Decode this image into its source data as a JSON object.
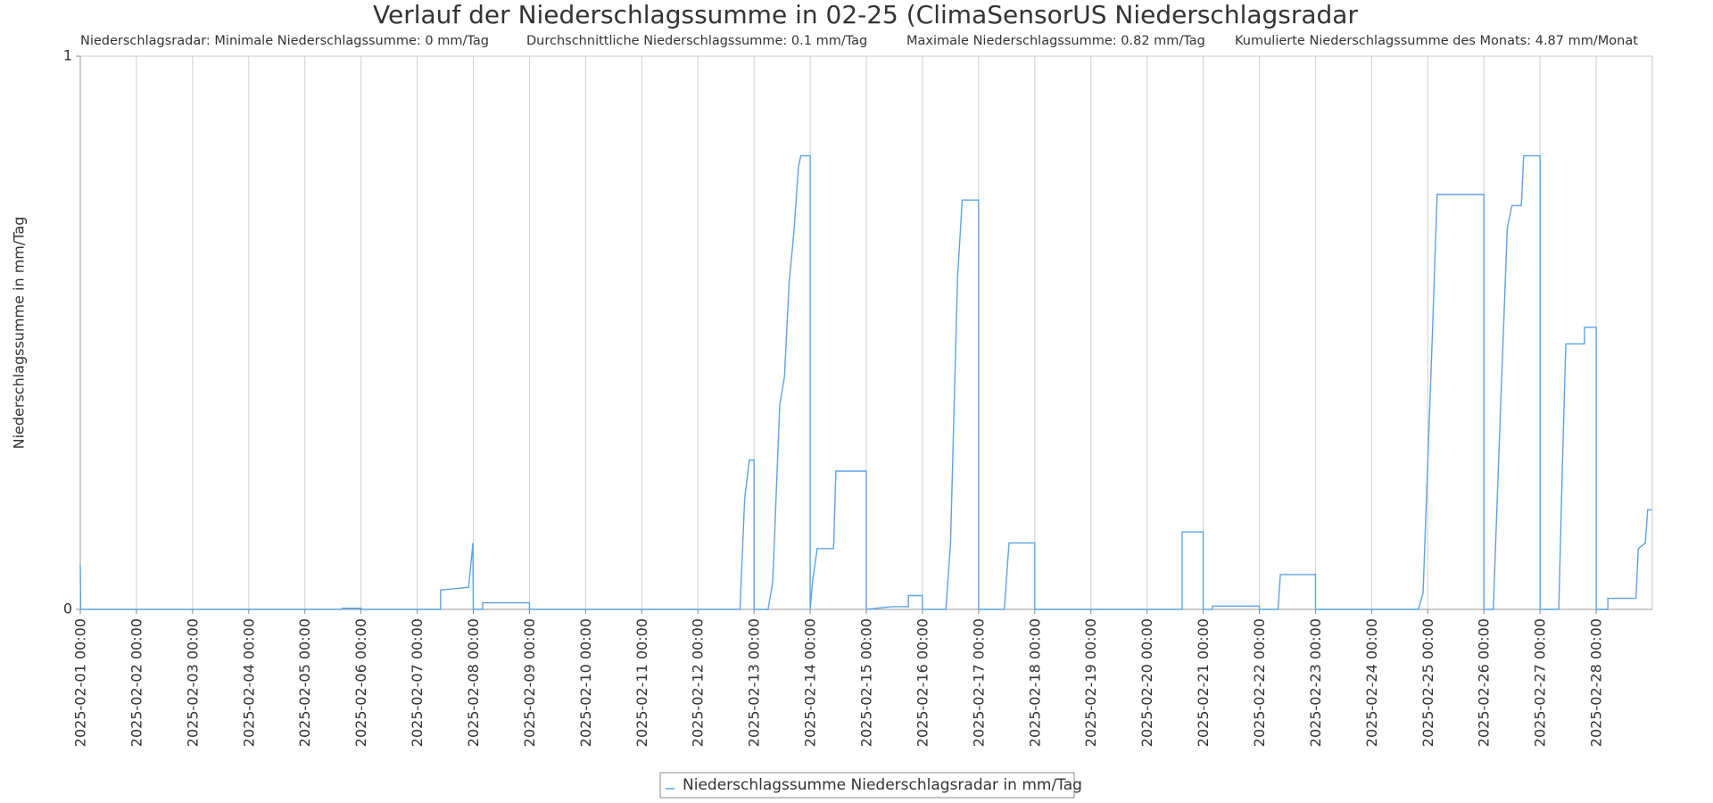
{
  "chart_data": {
    "type": "line",
    "title": "Verlauf der Niederschlagssumme in 02-25 (ClimaSensorUS Niederschlagsradar",
    "annotations": [
      "Niederschlagsradar: Minimale Niederschlagssumme: 0 mm/Tag",
      "Durchschnittliche Niederschlagssumme: 0.1 mm/Tag",
      "Maximale Niederschlagssumme: 0.82 mm/Tag",
      "Kumulierte Niederschlagssumme des Monats: 4.87 mm/Monat"
    ],
    "y_label": "Niederschlagssumme in mm/Tag",
    "xlim": [
      "2025-02-01 00:00",
      "2025-03-01 00:00"
    ],
    "xticks": [
      "2025-02-01 00:00",
      "2025-02-02 00:00",
      "2025-02-03 00:00",
      "2025-02-04 00:00",
      "2025-02-05 00:00",
      "2025-02-06 00:00",
      "2025-02-07 00:00",
      "2025-02-08 00:00",
      "2025-02-09 00:00",
      "2025-02-10 00:00",
      "2025-02-11 00:00",
      "2025-02-12 00:00",
      "2025-02-13 00:00",
      "2025-02-14 00:00",
      "2025-02-15 00:00",
      "2025-02-16 00:00",
      "2025-02-17 00:00",
      "2025-02-18 00:00",
      "2025-02-19 00:00",
      "2025-02-20 00:00",
      "2025-02-21 00:00",
      "2025-02-22 00:00",
      "2025-02-23 00:00",
      "2025-02-24 00:00",
      "2025-02-25 00:00",
      "2025-02-26 00:00",
      "2025-02-27 00:00",
      "2025-02-28 00:00"
    ],
    "ylim": [
      0,
      1
    ],
    "yticks": [
      0,
      1
    ],
    "grid": true,
    "legend": "bottom",
    "x": [
      "2025-02-01 00:00",
      "2025-02-01 00:10",
      "2025-02-05 16:00",
      "2025-02-05 16:00",
      "2025-02-06 00:00",
      "2025-02-06 00:00",
      "2025-02-07 10:00",
      "2025-02-07 10:00",
      "2025-02-07 22:00",
      "2025-02-07 23:50",
      "2025-02-08 00:00",
      "2025-02-08 04:00",
      "2025-02-08 04:00",
      "2025-02-09 00:00",
      "2025-02-09 00:00",
      "2025-02-12 18:00",
      "2025-02-12 20:00",
      "2025-02-12 22:00",
      "2025-02-13 00:00",
      "2025-02-13 00:00",
      "2025-02-13 06:00",
      "2025-02-13 08:00",
      "2025-02-13 11:00",
      "2025-02-13 13:00",
      "2025-02-13 15:00",
      "2025-02-13 17:00",
      "2025-02-13 19:00",
      "2025-02-13 20:00",
      "2025-02-14 00:00",
      "2025-02-14 00:00",
      "2025-02-14 01:00",
      "2025-02-14 03:00",
      "2025-02-14 10:00",
      "2025-02-14 11:00",
      "2025-02-15 00:00",
      "2025-02-15 00:00",
      "2025-02-15 11:00",
      "2025-02-15 18:00",
      "2025-02-15 18:00",
      "2025-02-16 00:00",
      "2025-02-16 00:00",
      "2025-02-16 10:00",
      "2025-02-16 12:00",
      "2025-02-16 15:00",
      "2025-02-16 17:00",
      "2025-02-17 00:00",
      "2025-02-17 00:00",
      "2025-02-17 11:00",
      "2025-02-17 13:00",
      "2025-02-18 00:00",
      "2025-02-18 00:00",
      "2025-02-20 15:00",
      "2025-02-20 15:00",
      "2025-02-21 00:00",
      "2025-02-21 00:00",
      "2025-02-21 04:00",
      "2025-02-21 04:00",
      "2025-02-22 00:00",
      "2025-02-22 00:00",
      "2025-02-22 08:00",
      "2025-02-22 09:00",
      "2025-02-23 00:00",
      "2025-02-23 00:00",
      "2025-02-24 20:00",
      "2025-02-24 22:00",
      "2025-02-25 02:00",
      "2025-02-25 04:00",
      "2025-02-26 00:00",
      "2025-02-26 00:00",
      "2025-02-26 04:00",
      "2025-02-26 07:00",
      "2025-02-26 10:00",
      "2025-02-26 12:00",
      "2025-02-26 16:00",
      "2025-02-26 17:00",
      "2025-02-27 00:00",
      "2025-02-27 00:00",
      "2025-02-27 08:00",
      "2025-02-27 09:30",
      "2025-02-27 11:00",
      "2025-02-27 19:00",
      "2025-02-27 19:00",
      "2025-02-28 00:00",
      "2025-02-28 00:00",
      "2025-02-28 05:00",
      "2025-02-28 05:00",
      "2025-02-28 17:00",
      "2025-02-28 18:00",
      "2025-02-28 21:00",
      "2025-02-28 22:00",
      "2025-03-01 00:00"
    ],
    "series": [
      {
        "name": "Niederschlagssumme Niederschlagsradar in mm/Tag",
        "color": "#5ba3e6",
        "values": [
          0.08,
          0,
          0,
          0.002,
          0.002,
          0,
          0,
          0.035,
          0.04,
          0.12,
          0,
          0,
          0.012,
          0.012,
          0,
          0,
          0.2,
          0.27,
          0.27,
          0,
          0,
          0.05,
          0.37,
          0.42,
          0.59,
          0.68,
          0.8,
          0.82,
          0.82,
          0,
          0.05,
          0.11,
          0.11,
          0.25,
          0.25,
          0,
          0.005,
          0.005,
          0.025,
          0.025,
          0,
          0,
          0.12,
          0.6,
          0.74,
          0.74,
          0,
          0,
          0.12,
          0.12,
          0,
          0,
          0.14,
          0.14,
          0,
          0,
          0.006,
          0.006,
          0,
          0,
          0.063,
          0.063,
          0,
          0,
          0.03,
          0.5,
          0.75,
          0.75,
          0,
          0,
          0.35,
          0.69,
          0.73,
          0.73,
          0.82,
          0.82,
          0,
          0,
          0.25,
          0.48,
          0.48,
          0.51,
          0.51,
          0,
          0,
          0.02,
          0.02,
          0.11,
          0.12,
          0.18,
          0.18
        ]
      }
    ]
  }
}
